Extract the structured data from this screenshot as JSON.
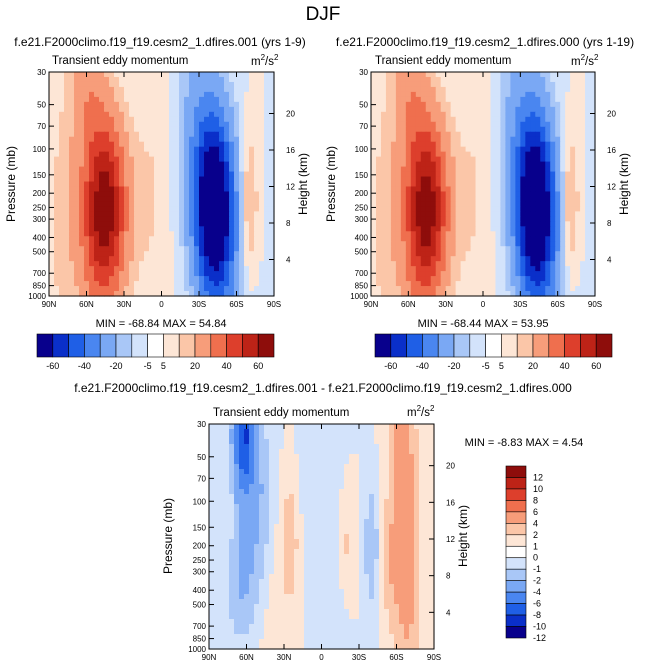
{
  "figure": {
    "title": "DJF"
  },
  "colors": {
    "full": [
      "#08008c",
      "#0a2fc9",
      "#1f5fe6",
      "#4a86f0",
      "#7aa8f4",
      "#a9c7f7",
      "#d3e3fb",
      "#ffffff",
      "#fde6d6",
      "#fbc6a8",
      "#f79d7a",
      "#ef6f4e",
      "#dd3f2c",
      "#bd2317",
      "#8e0d0b"
    ],
    "diff": [
      "#08008c",
      "#0a2fc9",
      "#1f5fe6",
      "#4a86f0",
      "#7aa8f4",
      "#a9c7f7",
      "#d3e3fb",
      "#ffffff",
      "#fde6d6",
      "#fbc6a8",
      "#f79d7a",
      "#ef6f4e",
      "#dd3f2c",
      "#bd2317",
      "#8e0d0b"
    ]
  },
  "chart_data": [
    {
      "type": "heatmap",
      "title": "f.e21.F2000climo.f19_f19.cesm2_1.dfires.001 (yrs 1-9)",
      "left_string": "Transient eddy momentum",
      "units": {
        "base": "m",
        "sup1": "2",
        "mid": "/s",
        "sup2": "2"
      },
      "xlabel": "",
      "ylabel": "Pressure (mb)",
      "y2label": "Height (km)",
      "x_ticks": [
        "90N",
        "60N",
        "30N",
        "0",
        "30S",
        "60S",
        "90S"
      ],
      "y_ticks": [
        "30",
        "50",
        "70",
        "100",
        "150",
        "200",
        "250",
        "300",
        "400",
        "500",
        "700",
        "850",
        "1000"
      ],
      "y2_ticks": [
        "20",
        "16",
        "12",
        "8",
        "4"
      ],
      "stats": {
        "min_label": "MIN = ",
        "min": "-68.84",
        "max_label": "MAX = ",
        "max": "54.84"
      },
      "features": [
        {
          "lat": 45,
          "p": 250,
          "amp": 54,
          "sx": 12,
          "sy": 0.42
        },
        {
          "lat": 60,
          "p": 40,
          "amp": 14,
          "sx": 10,
          "sy": 0.35
        },
        {
          "lat": 55,
          "p": 600,
          "amp": 8,
          "sx": 14,
          "sy": 0.5
        },
        {
          "lat": 8,
          "p": 200,
          "amp": 5,
          "sx": 10,
          "sy": 0.7
        },
        {
          "lat": -42,
          "p": 250,
          "amp": -68,
          "sx": 11,
          "sy": 0.42
        },
        {
          "lat": -30,
          "p": 60,
          "amp": -12,
          "sx": 12,
          "sy": 0.5
        },
        {
          "lat": -50,
          "p": 700,
          "amp": -10,
          "sx": 14,
          "sy": 0.5
        },
        {
          "lat": -70,
          "p": 250,
          "amp": 14,
          "sx": 5,
          "sy": 0.35
        },
        {
          "lat": 80,
          "p": 300,
          "amp": 6,
          "sx": 8,
          "sy": 0.6
        }
      ]
    },
    {
      "type": "heatmap",
      "title": "f.e21.F2000climo.f19_f19.cesm2_1.dfires.000 (yrs 1-19)",
      "left_string": "Transient eddy momentum",
      "units": {
        "base": "m",
        "sup1": "2",
        "mid": "/s",
        "sup2": "2"
      },
      "xlabel": "",
      "ylabel": "Pressure (mb)",
      "y2label": "Height (km)",
      "x_ticks": [
        "90N",
        "60N",
        "30N",
        "0",
        "30S",
        "60S",
        "90S"
      ],
      "y_ticks": [
        "30",
        "50",
        "70",
        "100",
        "150",
        "200",
        "250",
        "300",
        "400",
        "500",
        "700",
        "850",
        "1000"
      ],
      "y2_ticks": [
        "20",
        "16",
        "12",
        "8",
        "4"
      ],
      "stats": {
        "min_label": "MIN = ",
        "min": "-68.44",
        "max_label": "MAX = ",
        "max": "53.95"
      },
      "features": [
        {
          "lat": 45,
          "p": 250,
          "amp": 53,
          "sx": 12,
          "sy": 0.42
        },
        {
          "lat": 60,
          "p": 40,
          "amp": 14,
          "sx": 10,
          "sy": 0.35
        },
        {
          "lat": 55,
          "p": 600,
          "amp": 8,
          "sx": 14,
          "sy": 0.5
        },
        {
          "lat": 8,
          "p": 200,
          "amp": 5,
          "sx": 10,
          "sy": 0.7
        },
        {
          "lat": -42,
          "p": 250,
          "amp": -68,
          "sx": 11,
          "sy": 0.42
        },
        {
          "lat": -30,
          "p": 60,
          "amp": -12,
          "sx": 12,
          "sy": 0.5
        },
        {
          "lat": -50,
          "p": 700,
          "amp": -10,
          "sx": 14,
          "sy": 0.5
        },
        {
          "lat": -70,
          "p": 250,
          "amp": 14,
          "sx": 5,
          "sy": 0.35
        },
        {
          "lat": 80,
          "p": 300,
          "amp": 6,
          "sx": 8,
          "sy": 0.6
        }
      ]
    },
    {
      "type": "heatmap",
      "title": "f.e21.F2000climo.f19_f19.cesm2_1.dfires.001 - f.e21.F2000climo.f19_f19.cesm2_1.dfires.000",
      "left_string": "Transient eddy momentum",
      "units": {
        "base": "m",
        "sup1": "2",
        "mid": "/s",
        "sup2": "2"
      },
      "xlabel": "",
      "ylabel": "Pressure (mb)",
      "y2label": "Height (km)",
      "x_ticks": [
        "90N",
        "60N",
        "30N",
        "0",
        "30S",
        "60S",
        "90S"
      ],
      "y_ticks": [
        "30",
        "50",
        "70",
        "100",
        "150",
        "200",
        "250",
        "300",
        "400",
        "500",
        "700",
        "850",
        "1000"
      ],
      "y2_ticks": [
        "20",
        "16",
        "12",
        "8",
        "4"
      ],
      "stats": {
        "min_label": "MIN = ",
        "min": "-8.83",
        "max_label": "MAX = ",
        "max": "4.54"
      },
      "features": [
        {
          "lat": 62,
          "p": 35,
          "amp": -8,
          "sx": 6,
          "sy": 0.3
        },
        {
          "lat": 50,
          "p": 120,
          "amp": -2,
          "sx": 8,
          "sy": 0.5
        },
        {
          "lat": -65,
          "p": 70,
          "amp": 3,
          "sx": 8,
          "sy": 0.6
        },
        {
          "lat": -20,
          "p": 200,
          "amp": 1.5,
          "sx": 6,
          "sy": 0.3
        },
        {
          "lat": 25,
          "p": 180,
          "amp": 1.8,
          "sx": 5,
          "sy": 0.3
        },
        {
          "lat": -40,
          "p": 200,
          "amp": -2,
          "sx": 4,
          "sy": 0.3
        },
        {
          "lat": 65,
          "p": 350,
          "amp": -2,
          "sx": 8,
          "sy": 0.3
        },
        {
          "lat": -70,
          "p": 700,
          "amp": 1.5,
          "sx": 8,
          "sy": 0.4
        },
        {
          "lat": 40,
          "p": 700,
          "amp": 0.8,
          "sx": 10,
          "sy": 0.5
        },
        {
          "lat": -10,
          "p": 500,
          "amp": -0.8,
          "sx": 10,
          "sy": 0.5
        },
        {
          "lat": 0,
          "p": 80,
          "amp": -0.8,
          "sx": 12,
          "sy": 0.4
        },
        {
          "lat": -55,
          "p": 300,
          "amp": 1.0,
          "sx": 5,
          "sy": 0.3
        }
      ]
    }
  ],
  "colorbars": [
    {
      "orientation": "horizontal",
      "labels": [
        "-60",
        "-40",
        "-20",
        "-5",
        "5",
        "20",
        "40",
        "60"
      ],
      "levels": [
        -60,
        -50,
        -40,
        -30,
        -20,
        -10,
        -5,
        0,
        5,
        10,
        20,
        30,
        40,
        50,
        60
      ],
      "palette": "full"
    },
    {
      "orientation": "horizontal",
      "labels": [
        "-60",
        "-40",
        "-20",
        "-5",
        "5",
        "20",
        "40",
        "60"
      ],
      "levels": [
        -60,
        -50,
        -40,
        -30,
        -20,
        -10,
        -5,
        0,
        5,
        10,
        20,
        30,
        40,
        50,
        60
      ],
      "palette": "full"
    },
    {
      "orientation": "vertical",
      "labels": [
        "12",
        "10",
        "8",
        "6",
        "4",
        "2",
        "1",
        "0",
        "-1",
        "-2",
        "-4",
        "-6",
        "-8",
        "-10",
        "-12"
      ],
      "levels": [
        -12,
        -10,
        -8,
        -6,
        -4,
        -2,
        -1,
        0,
        1,
        2,
        4,
        6,
        8,
        10,
        12
      ],
      "palette": "diff"
    }
  ]
}
